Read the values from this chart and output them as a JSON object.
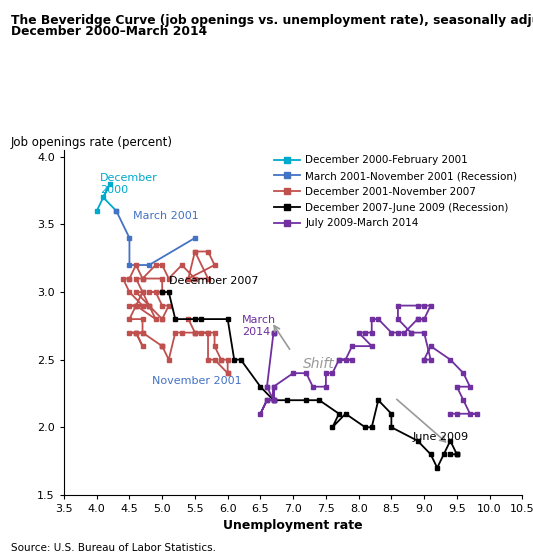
{
  "title_line1": "The Beveridge Curve (job openings vs. unemployment rate), seasonally adjusted,",
  "title_line2": "December 2000–March 2014",
  "ylabel": "Job openings rate (percent)",
  "xlabel": "Unemployment rate",
  "source": "Source: U.S. Bureau of Labor Statistics.",
  "xlim": [
    3.5,
    10.5
  ],
  "ylim": [
    1.5,
    4.05
  ],
  "xticks": [
    3.5,
    4.0,
    4.5,
    5.0,
    5.5,
    6.0,
    6.5,
    7.0,
    7.5,
    8.0,
    8.5,
    9.0,
    9.5,
    10.0,
    10.5
  ],
  "yticks": [
    1.5,
    2.0,
    2.5,
    3.0,
    3.5,
    4.0
  ],
  "seg1_color": "#00AACC",
  "seg2_color": "#4472C4",
  "seg3_color": "#C0504D",
  "seg4_color": "#000000",
  "seg5_color": "#7030A0",
  "seg1_label": "December 2000-February 2001",
  "seg2_label": "March 2001-November 2001 (Recession)",
  "seg3_label": "December 2001-November 2007",
  "seg4_label": "December 2007-June 2009 (Recession)",
  "seg5_label": "July 2009-March 2014",
  "seg1": {
    "u": [
      4.0,
      4.2,
      4.1,
      4.3
    ],
    "j": [
      3.6,
      3.8,
      3.7,
      3.6
    ]
  },
  "seg2": {
    "u": [
      4.3,
      4.5,
      4.5,
      4.8,
      5.5
    ],
    "j": [
      3.6,
      3.4,
      3.2,
      3.2,
      3.4
    ]
  },
  "seg3": {
    "u": [
      5.5,
      5.7,
      5.8,
      5.4,
      5.5,
      5.7,
      5.5,
      5.3,
      5.1,
      5.0,
      4.9,
      4.7,
      4.6,
      4.7,
      4.6,
      4.8,
      4.6,
      4.7,
      4.8,
      4.9,
      4.6,
      4.7,
      4.8,
      5.0,
      5.0,
      5.1,
      5.0,
      4.9,
      4.8,
      5.0,
      5.0,
      5.0,
      4.7,
      4.6,
      4.5,
      4.5,
      4.4,
      4.5,
      4.7,
      4.5,
      4.6,
      4.5,
      4.7,
      4.7,
      4.6,
      4.5,
      4.6,
      4.7,
      4.6,
      4.7,
      5.0,
      5.0,
      5.0,
      5.1,
      5.2,
      5.3,
      5.5,
      5.5,
      5.7,
      5.8,
      5.8,
      5.9,
      5.9,
      6.0,
      6.0,
      6.0,
      5.8,
      5.7,
      5.7,
      5.6,
      5.5,
      5.4
    ],
    "j": [
      3.3,
      3.3,
      3.2,
      3.1,
      3.3,
      3.1,
      3.1,
      3.2,
      3.1,
      3.2,
      3.2,
      3.1,
      3.1,
      3.0,
      3.0,
      2.9,
      2.9,
      2.9,
      2.9,
      2.8,
      2.9,
      3.0,
      2.9,
      2.8,
      2.8,
      2.9,
      2.9,
      3.0,
      3.0,
      3.0,
      3.0,
      3.1,
      3.1,
      3.2,
      3.1,
      3.1,
      3.1,
      3.0,
      2.9,
      2.9,
      2.9,
      2.8,
      2.8,
      2.7,
      2.7,
      2.7,
      2.7,
      2.6,
      2.7,
      2.7,
      2.6,
      2.6,
      2.6,
      2.5,
      2.7,
      2.7,
      2.7,
      2.7,
      2.7,
      2.7,
      2.6,
      2.5,
      2.5,
      2.5,
      2.4,
      2.4,
      2.5,
      2.5,
      2.7,
      2.7,
      2.7,
      2.8
    ]
  },
  "seg4": {
    "u": [
      5.0,
      5.1,
      5.2,
      5.5,
      5.6,
      6.0,
      6.1,
      6.2,
      6.5,
      6.7,
      6.9,
      7.2,
      7.4,
      7.7,
      7.6,
      7.8,
      8.1,
      8.2,
      8.3,
      8.5,
      8.5,
      8.9,
      9.1,
      9.2,
      9.3,
      9.4,
      9.5,
      9.5,
      9.5,
      9.4
    ],
    "j": [
      3.0,
      3.0,
      2.8,
      2.8,
      2.8,
      2.8,
      2.5,
      2.5,
      2.3,
      2.2,
      2.2,
      2.2,
      2.2,
      2.1,
      2.0,
      2.1,
      2.0,
      2.0,
      2.2,
      2.1,
      2.0,
      1.9,
      1.8,
      1.7,
      1.8,
      1.9,
      1.8,
      1.8,
      1.8,
      1.8
    ]
  },
  "seg5": {
    "u": [
      9.4,
      9.5,
      9.8,
      9.7,
      9.6,
      9.5,
      9.7,
      9.6,
      9.4,
      9.1,
      9.0,
      9.0,
      9.1,
      9.0,
      8.8,
      8.8,
      8.6,
      8.6,
      8.9,
      9.0,
      9.1,
      9.0,
      8.9,
      8.9,
      8.7,
      8.6,
      8.5,
      8.3,
      8.2,
      8.2,
      8.1,
      8.0,
      8.2,
      7.9,
      7.8,
      7.7,
      7.9,
      7.7,
      7.6,
      7.5,
      7.5,
      7.3,
      7.2,
      7.0,
      6.7,
      6.7,
      6.6,
      6.5,
      6.6,
      6.7,
      6.7,
      6.7,
      6.6,
      6.6,
      6.7,
      6.7,
      6.7
    ],
    "j": [
      2.1,
      2.1,
      2.1,
      2.1,
      2.2,
      2.3,
      2.3,
      2.4,
      2.5,
      2.6,
      2.5,
      2.5,
      2.5,
      2.7,
      2.7,
      2.7,
      2.8,
      2.9,
      2.9,
      2.9,
      2.9,
      2.8,
      2.8,
      2.8,
      2.7,
      2.7,
      2.7,
      2.8,
      2.8,
      2.7,
      2.7,
      2.7,
      2.6,
      2.6,
      2.5,
      2.5,
      2.5,
      2.5,
      2.4,
      2.4,
      2.3,
      2.3,
      2.4,
      2.4,
      2.3,
      2.2,
      2.2,
      2.1,
      2.2,
      2.2,
      2.3,
      2.2,
      2.3,
      2.3,
      2.7,
      2.7,
      2.7
    ]
  }
}
